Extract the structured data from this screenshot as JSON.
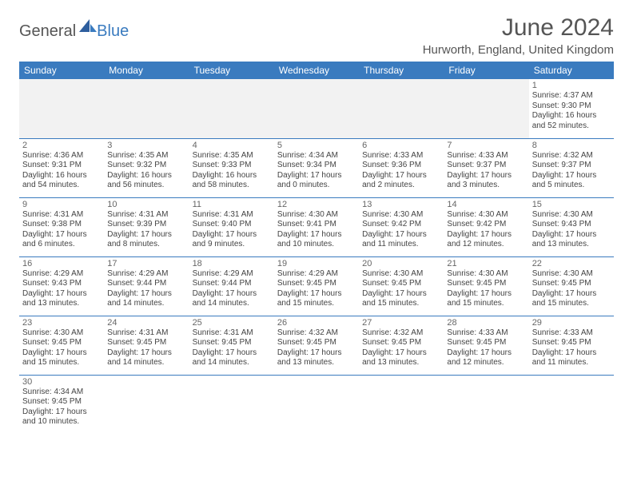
{
  "logo": {
    "general": "General",
    "blue": "Blue"
  },
  "title": "June 2024",
  "location": "Hurworth, England, United Kingdom",
  "weekdays": [
    "Sunday",
    "Monday",
    "Tuesday",
    "Wednesday",
    "Thursday",
    "Friday",
    "Saturday"
  ],
  "colors": {
    "header_bg": "#3a7bbf",
    "header_text": "#ffffff",
    "grid_border": "#3a7bbf",
    "empty_bg": "#f2f2f2",
    "title_text": "#555555"
  },
  "first_weekday_index": 6,
  "days": [
    {
      "n": 1,
      "sunrise": "4:37 AM",
      "sunset": "9:30 PM",
      "daylight": "16 hours and 52 minutes."
    },
    {
      "n": 2,
      "sunrise": "4:36 AM",
      "sunset": "9:31 PM",
      "daylight": "16 hours and 54 minutes."
    },
    {
      "n": 3,
      "sunrise": "4:35 AM",
      "sunset": "9:32 PM",
      "daylight": "16 hours and 56 minutes."
    },
    {
      "n": 4,
      "sunrise": "4:35 AM",
      "sunset": "9:33 PM",
      "daylight": "16 hours and 58 minutes."
    },
    {
      "n": 5,
      "sunrise": "4:34 AM",
      "sunset": "9:34 PM",
      "daylight": "17 hours and 0 minutes."
    },
    {
      "n": 6,
      "sunrise": "4:33 AM",
      "sunset": "9:36 PM",
      "daylight": "17 hours and 2 minutes."
    },
    {
      "n": 7,
      "sunrise": "4:33 AM",
      "sunset": "9:37 PM",
      "daylight": "17 hours and 3 minutes."
    },
    {
      "n": 8,
      "sunrise": "4:32 AM",
      "sunset": "9:37 PM",
      "daylight": "17 hours and 5 minutes."
    },
    {
      "n": 9,
      "sunrise": "4:31 AM",
      "sunset": "9:38 PM",
      "daylight": "17 hours and 6 minutes."
    },
    {
      "n": 10,
      "sunrise": "4:31 AM",
      "sunset": "9:39 PM",
      "daylight": "17 hours and 8 minutes."
    },
    {
      "n": 11,
      "sunrise": "4:31 AM",
      "sunset": "9:40 PM",
      "daylight": "17 hours and 9 minutes."
    },
    {
      "n": 12,
      "sunrise": "4:30 AM",
      "sunset": "9:41 PM",
      "daylight": "17 hours and 10 minutes."
    },
    {
      "n": 13,
      "sunrise": "4:30 AM",
      "sunset": "9:42 PM",
      "daylight": "17 hours and 11 minutes."
    },
    {
      "n": 14,
      "sunrise": "4:30 AM",
      "sunset": "9:42 PM",
      "daylight": "17 hours and 12 minutes."
    },
    {
      "n": 15,
      "sunrise": "4:30 AM",
      "sunset": "9:43 PM",
      "daylight": "17 hours and 13 minutes."
    },
    {
      "n": 16,
      "sunrise": "4:29 AM",
      "sunset": "9:43 PM",
      "daylight": "17 hours and 13 minutes."
    },
    {
      "n": 17,
      "sunrise": "4:29 AM",
      "sunset": "9:44 PM",
      "daylight": "17 hours and 14 minutes."
    },
    {
      "n": 18,
      "sunrise": "4:29 AM",
      "sunset": "9:44 PM",
      "daylight": "17 hours and 14 minutes."
    },
    {
      "n": 19,
      "sunrise": "4:29 AM",
      "sunset": "9:45 PM",
      "daylight": "17 hours and 15 minutes."
    },
    {
      "n": 20,
      "sunrise": "4:30 AM",
      "sunset": "9:45 PM",
      "daylight": "17 hours and 15 minutes."
    },
    {
      "n": 21,
      "sunrise": "4:30 AM",
      "sunset": "9:45 PM",
      "daylight": "17 hours and 15 minutes."
    },
    {
      "n": 22,
      "sunrise": "4:30 AM",
      "sunset": "9:45 PM",
      "daylight": "17 hours and 15 minutes."
    },
    {
      "n": 23,
      "sunrise": "4:30 AM",
      "sunset": "9:45 PM",
      "daylight": "17 hours and 15 minutes."
    },
    {
      "n": 24,
      "sunrise": "4:31 AM",
      "sunset": "9:45 PM",
      "daylight": "17 hours and 14 minutes."
    },
    {
      "n": 25,
      "sunrise": "4:31 AM",
      "sunset": "9:45 PM",
      "daylight": "17 hours and 14 minutes."
    },
    {
      "n": 26,
      "sunrise": "4:32 AM",
      "sunset": "9:45 PM",
      "daylight": "17 hours and 13 minutes."
    },
    {
      "n": 27,
      "sunrise": "4:32 AM",
      "sunset": "9:45 PM",
      "daylight": "17 hours and 13 minutes."
    },
    {
      "n": 28,
      "sunrise": "4:33 AM",
      "sunset": "9:45 PM",
      "daylight": "17 hours and 12 minutes."
    },
    {
      "n": 29,
      "sunrise": "4:33 AM",
      "sunset": "9:45 PM",
      "daylight": "17 hours and 11 minutes."
    },
    {
      "n": 30,
      "sunrise": "4:34 AM",
      "sunset": "9:45 PM",
      "daylight": "17 hours and 10 minutes."
    }
  ],
  "labels": {
    "sunrise": "Sunrise",
    "sunset": "Sunset",
    "daylight": "Daylight"
  }
}
